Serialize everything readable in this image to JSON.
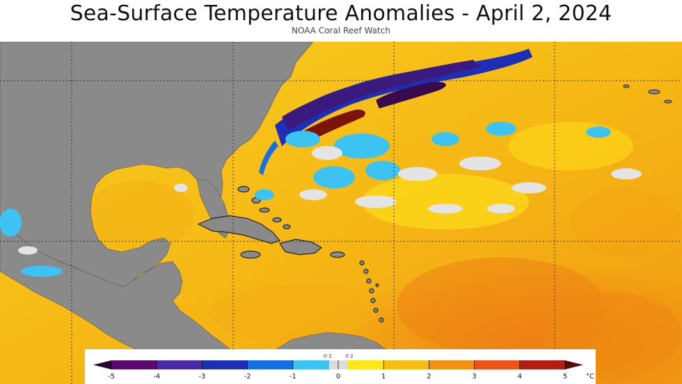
{
  "header": {
    "title": "Sea-Surface Temperature Anomalies - April 2, 2024",
    "source": "NOAA Coral Reef Watch"
  },
  "colors": {
    "land": "#8a8a8a",
    "warm_base": "#f4c20d",
    "hot": "#ef8a12",
    "cool": "#2fa8e8",
    "cold": "#1d2fb5",
    "neutral": "#dcdcdc"
  },
  "legend": {
    "unit": "°C",
    "ticks": [
      "-5",
      "-4",
      "-3",
      "-2",
      "-1",
      "0",
      "1",
      "2",
      "3",
      "4",
      "5"
    ],
    "neutral_ticks": [
      "-0.2",
      "0.2"
    ],
    "bins": [
      {
        "from": -5,
        "to": -4,
        "color": "#5a0a6e"
      },
      {
        "from": -4,
        "to": -3,
        "color": "#4b2aa8"
      },
      {
        "from": -3,
        "to": -2,
        "color": "#1d2fb5"
      },
      {
        "from": -2,
        "to": -1,
        "color": "#1570e6"
      },
      {
        "from": -1,
        "to": -0.2,
        "color": "#3cc3f2"
      },
      {
        "from": -0.2,
        "to": 0.2,
        "color": "#dcdcdc"
      },
      {
        "from": 0.2,
        "to": 1,
        "color": "#ffe81a"
      },
      {
        "from": 1,
        "to": 2,
        "color": "#f6be12"
      },
      {
        "from": 2,
        "to": 3,
        "color": "#f19112"
      },
      {
        "from": 3,
        "to": 4,
        "color": "#ea5416"
      },
      {
        "from": 4,
        "to": 5,
        "color": "#b41e12"
      }
    ],
    "under_color": "#2a0030",
    "over_color": "#5a0a0a"
  }
}
